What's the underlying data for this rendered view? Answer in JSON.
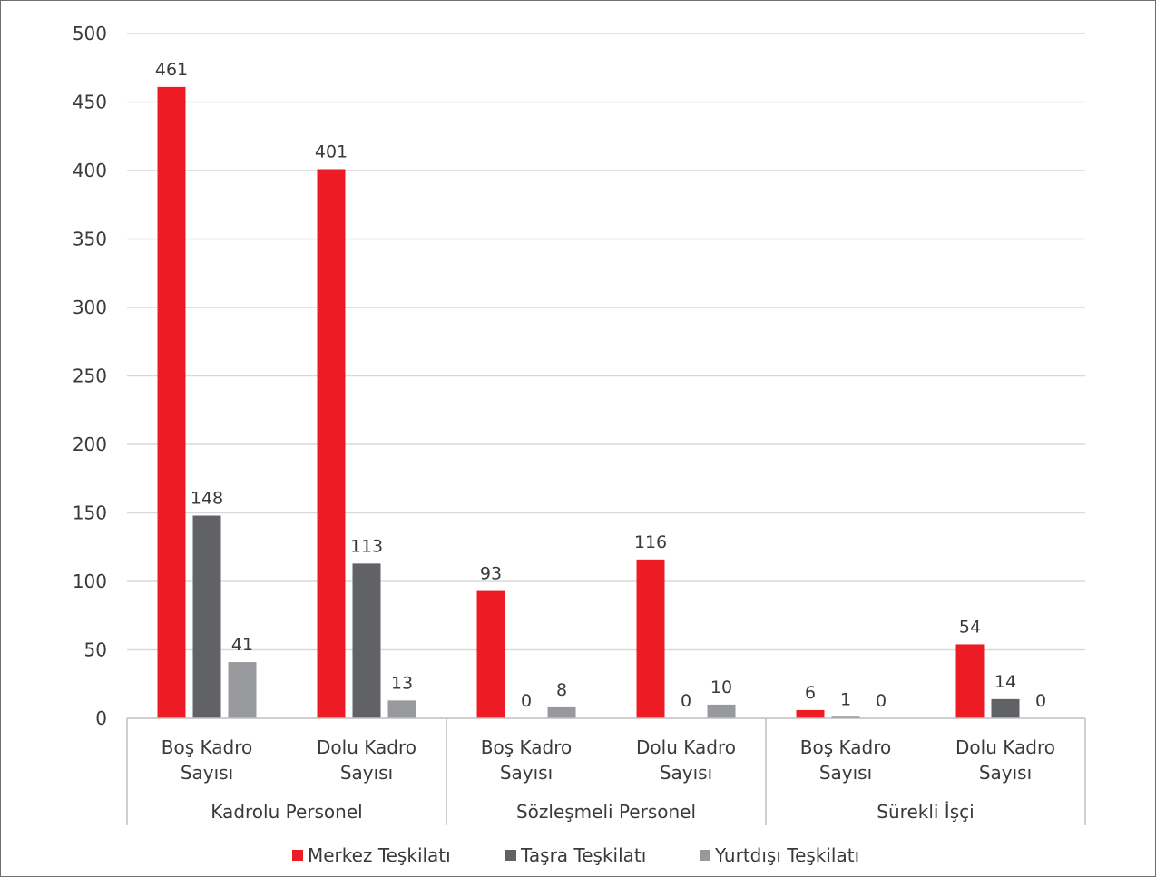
{
  "chart_data": {
    "type": "bar",
    "title": "",
    "xlabel": "",
    "ylabel": "",
    "ylim": [
      0,
      500
    ],
    "yticks": [
      0,
      50,
      100,
      150,
      200,
      250,
      300,
      350,
      400,
      450,
      500
    ],
    "grid": true,
    "legend_position": "bottom",
    "groups": [
      {
        "label": "Kadrolu Personel",
        "categories": [
          [
            "Boş Kadro",
            "Sayısı"
          ],
          [
            "Dolu Kadro",
            "Sayısı"
          ]
        ]
      },
      {
        "label": "Sözleşmeli Personel",
        "categories": [
          [
            "Boş Kadro",
            "Sayısı"
          ],
          [
            "Dolu Kadro",
            "Sayısı"
          ]
        ]
      },
      {
        "label": "Sürekli İşçi",
        "categories": [
          [
            "Boş Kadro",
            "Sayısı"
          ],
          [
            "Dolu Kadro",
            "Sayısı"
          ]
        ]
      }
    ],
    "series": [
      {
        "name": "Merkez Teşkilatı",
        "color": "#ed1c24",
        "values": [
          461,
          401,
          93,
          116,
          6,
          54
        ]
      },
      {
        "name": "Taşra Teşkilatı",
        "color": "#616265",
        "values": [
          148,
          113,
          0,
          0,
          1,
          14
        ]
      },
      {
        "name": "Yurtdışı Teşkilatı",
        "color": "#97999c",
        "values": [
          41,
          13,
          8,
          10,
          0,
          0
        ]
      }
    ]
  }
}
